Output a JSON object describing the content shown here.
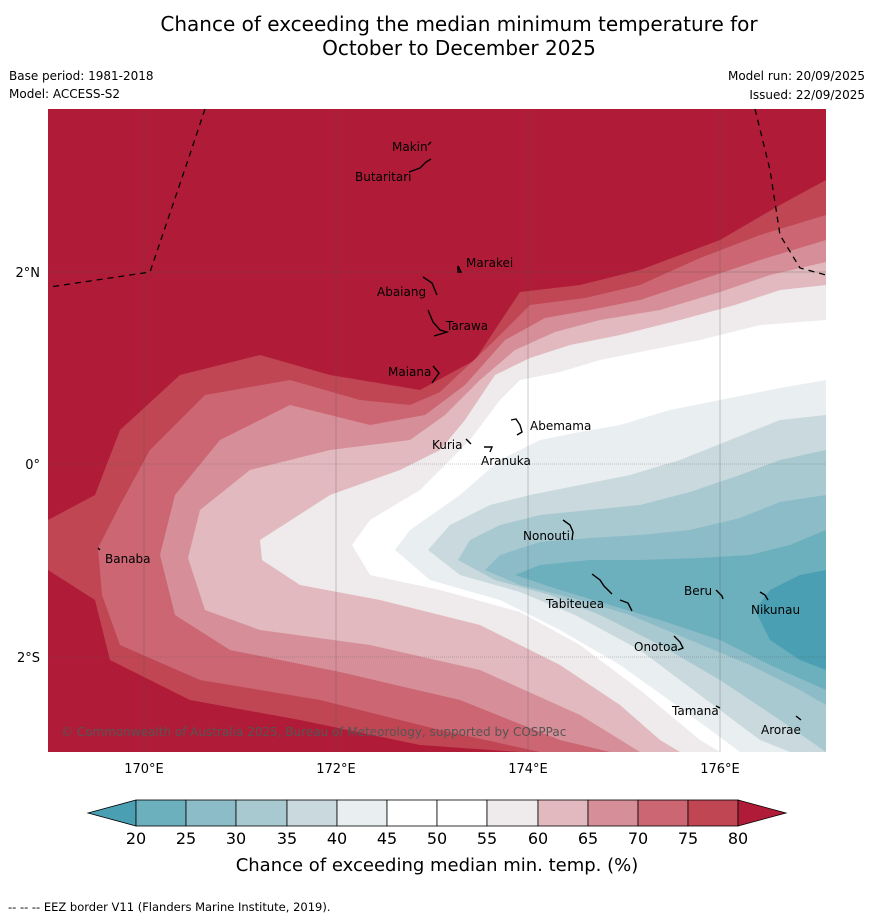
{
  "title_line1": "Chance of exceeding the median minimum temperature for",
  "title_line2": "October to December 2025",
  "base_period": "Base period: 1981-2018",
  "model": "Model: ACCESS-S2",
  "model_run": "Model run: 20/09/2025",
  "issued": "Issued: 22/09/2025",
  "map": {
    "lon_labels": [
      "170°E",
      "172°E",
      "174°E",
      "176°E"
    ],
    "lat_labels": [
      "2°N",
      "0°",
      "2°S"
    ],
    "places": [
      "Makin",
      "Butaritari",
      "Marakei",
      "Abaiang",
      "Tarawa",
      "Maiana",
      "Abemama",
      "Kuria",
      "Aranuka",
      "Banaba",
      "Nonouti",
      "Tabiteuea",
      "Beru",
      "Nikunau",
      "Onotoa",
      "Tamana",
      "Arorae"
    ],
    "copyright": "© Commonwealth of Australia 2025, Bureau of Meteorology, supported by COSPPac"
  },
  "colorbar": {
    "ticks": [
      "20",
      "25",
      "30",
      "35",
      "40",
      "45",
      "50",
      "55",
      "60",
      "65",
      "70",
      "75",
      "80"
    ],
    "colors": {
      "below20": "#4aa0b2",
      "c20_25": "#6cafbd",
      "c25_30": "#8bbcc7",
      "c30_35": "#a8c9d0",
      "c35_40": "#c9d9de",
      "c40_45": "#e9eef0",
      "c45_55": "#ffffff",
      "c55_60": "#efeaeb",
      "c60_65": "#e1b9bf",
      "c65_70": "#d68f99",
      "c70_75": "#cb6672",
      "c75_80": "#c04654",
      "above80": "#b01c37"
    },
    "label": "Chance of exceeding median min. temp. (%)"
  },
  "footer": "-- -- -- EEZ border V11 (Flanders Marine Institute, 2019)."
}
